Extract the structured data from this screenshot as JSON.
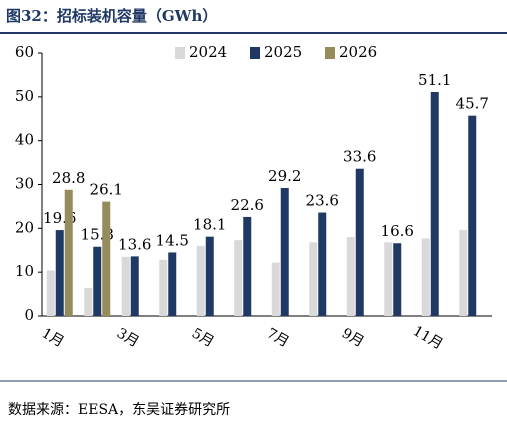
{
  "chart_data": {
    "type": "bar",
    "title": "图32：招标装机容量（GWh）",
    "source": "数据来源：EESA，东吴证券研究所",
    "categories": [
      "1月",
      null,
      "3月",
      null,
      "5月",
      null,
      "7月",
      null,
      "9月",
      null,
      "11月",
      null
    ],
    "series": [
      {
        "name": "2024",
        "color": "#d9d9d9",
        "values": [
          10.4,
          6.4,
          13.5,
          12.8,
          16.0,
          17.3,
          12.2,
          16.8,
          18.0,
          16.8,
          17.7,
          19.6
        ],
        "show_labels": false
      },
      {
        "name": "2025",
        "color": "#1f3864",
        "values": [
          19.6,
          15.8,
          13.6,
          14.5,
          18.1,
          22.6,
          29.2,
          23.6,
          33.6,
          16.6,
          51.1,
          45.7
        ],
        "show_labels": true
      },
      {
        "name": "2026",
        "color": "#958b5b",
        "values": [
          28.8,
          26.1,
          null,
          null,
          null,
          null,
          null,
          null,
          null,
          null,
          null,
          null
        ],
        "show_labels": true
      }
    ],
    "ylim": [
      0,
      60
    ],
    "yticks": [
      0,
      10,
      20,
      30,
      40,
      50,
      60
    ],
    "grid": false,
    "legend": "top"
  }
}
